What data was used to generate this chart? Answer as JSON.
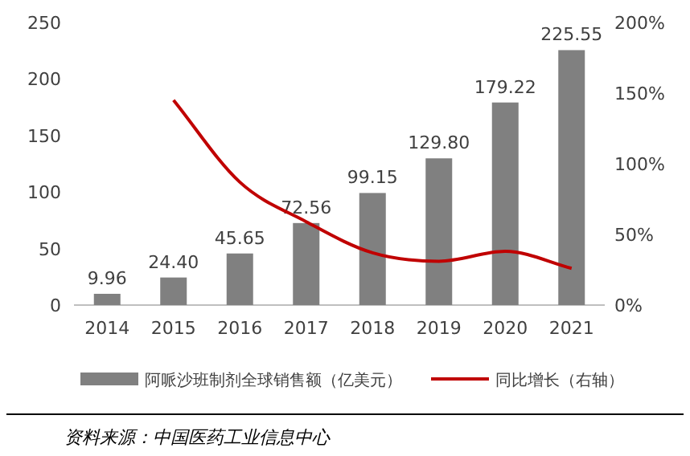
{
  "chart_data": {
    "type": "bar",
    "categories": [
      "2014",
      "2015",
      "2016",
      "2017",
      "2018",
      "2019",
      "2020",
      "2021"
    ],
    "series": [
      {
        "name": "阿哌沙班制剂全球销售额（亿美元）",
        "color": "#808080",
        "values": [
          9.96,
          24.4,
          45.65,
          72.56,
          99.15,
          129.8,
          179.22,
          225.55
        ],
        "value_labels": [
          "9.96",
          "24.40",
          "45.65",
          "72.56",
          "99.15",
          "129.80",
          "179.22",
          "225.55"
        ]
      },
      {
        "name": "同比增长（右轴）",
        "type": "line",
        "axis": "y2",
        "color": "#c00000",
        "values": [
          null,
          145,
          87,
          59,
          37,
          31,
          38,
          26
        ]
      }
    ],
    "ylim": [
      0,
      250
    ],
    "yticks": [
      0,
      50,
      100,
      150,
      200,
      250
    ],
    "y2lim": [
      0,
      200
    ],
    "y2ticks": [
      {
        "value": 0,
        "label": "0%"
      },
      {
        "value": 50,
        "label": "50%"
      },
      {
        "value": 100,
        "label": "100%"
      },
      {
        "value": 150,
        "label": "150%"
      },
      {
        "value": 200,
        "label": "200%"
      }
    ],
    "legend": "bottom",
    "grid": false,
    "marker": "none",
    "line_style": "solid",
    "annotations": [
      "资料来源：中国医药工业信息中心"
    ]
  }
}
